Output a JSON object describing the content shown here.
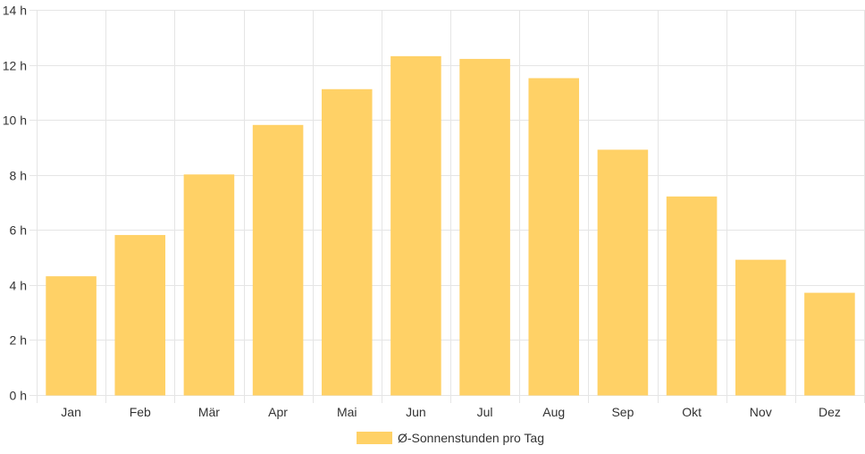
{
  "chart_data": {
    "type": "bar",
    "categories": [
      "Jan",
      "Feb",
      "Mär",
      "Apr",
      "Mai",
      "Jun",
      "Jul",
      "Aug",
      "Sep",
      "Okt",
      "Nov",
      "Dez"
    ],
    "series": [
      {
        "name": "Ø-Sonnenstunden pro Tag",
        "values": [
          4.3,
          5.8,
          8.0,
          9.8,
          11.1,
          12.3,
          12.2,
          11.5,
          8.9,
          7.2,
          4.9,
          3.7
        ],
        "color": "#ffd166"
      }
    ],
    "ylim": [
      0,
      14
    ],
    "yticks": [
      0,
      2,
      4,
      6,
      8,
      10,
      12,
      14
    ],
    "ytick_suffix": " h",
    "grid": true,
    "legend": "bottom",
    "colors": {
      "grid": "#e5e5e5",
      "bar_stroke": "#ffd166"
    }
  }
}
